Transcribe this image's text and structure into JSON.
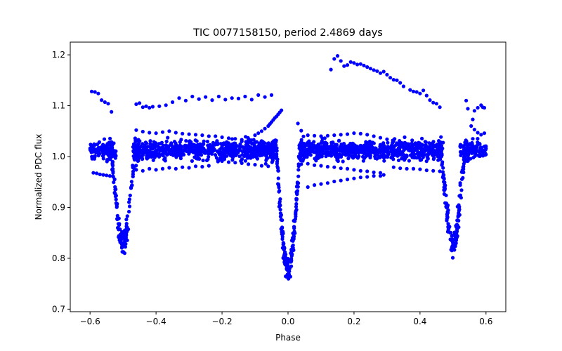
{
  "chart_data": {
    "type": "scatter",
    "title": "TIC 0077158150, period 2.4869 days",
    "xlabel": "Phase",
    "ylabel": "Normalized PDC flux",
    "xlim": [
      -0.66,
      0.66
    ],
    "ylim": [
      0.695,
      1.225
    ],
    "xticks": [
      -0.6,
      -0.4,
      -0.2,
      0.0,
      0.2,
      0.4,
      0.6
    ],
    "xtick_labels": [
      "−0.6",
      "−0.4",
      "−0.2",
      "0.0",
      "0.2",
      "0.4",
      "0.6"
    ],
    "yticks": [
      0.7,
      0.8,
      0.9,
      1.0,
      1.1,
      1.2
    ],
    "ytick_labels": [
      "0.7",
      "0.8",
      "0.9",
      "1.0",
      "1.1",
      "1.2"
    ],
    "grid": false,
    "marker_color": "#0000ff",
    "series": [
      {
        "points": [
          [
            -0.595,
            1.128
          ],
          [
            -0.585,
            1.127
          ],
          [
            -0.575,
            1.124
          ],
          [
            -0.565,
            1.111
          ],
          [
            -0.555,
            1.107
          ],
          [
            -0.545,
            1.104
          ],
          [
            -0.535,
            1.088
          ],
          [
            -0.59,
            0.968
          ],
          [
            -0.58,
            0.967
          ],
          [
            -0.57,
            0.965
          ],
          [
            -0.56,
            0.964
          ],
          [
            -0.55,
            0.963
          ],
          [
            -0.54,
            0.962
          ],
          [
            -0.46,
            1.103
          ],
          [
            -0.45,
            1.105
          ],
          [
            -0.44,
            1.097
          ],
          [
            -0.43,
            1.099
          ],
          [
            -0.42,
            1.096
          ],
          [
            -0.41,
            1.098
          ],
          [
            -0.39,
            1.099
          ],
          [
            -0.37,
            1.101
          ],
          [
            -0.35,
            1.107
          ],
          [
            -0.33,
            1.115
          ],
          [
            -0.31,
            1.11
          ],
          [
            -0.29,
            1.118
          ],
          [
            -0.27,
            1.113
          ],
          [
            -0.25,
            1.117
          ],
          [
            -0.23,
            1.111
          ],
          [
            -0.21,
            1.118
          ],
          [
            -0.19,
            1.112
          ],
          [
            -0.17,
            1.115
          ],
          [
            -0.15,
            1.114
          ],
          [
            -0.13,
            1.118
          ],
          [
            -0.11,
            1.112
          ],
          [
            -0.09,
            1.121
          ],
          [
            -0.07,
            1.117
          ],
          [
            -0.05,
            1.121
          ],
          [
            -0.46,
            0.974
          ],
          [
            -0.44,
            0.972
          ],
          [
            -0.42,
            0.976
          ],
          [
            -0.4,
            0.974
          ],
          [
            -0.38,
            0.976
          ],
          [
            -0.36,
            0.978
          ],
          [
            -0.34,
            0.976
          ],
          [
            -0.32,
            0.979
          ],
          [
            -0.3,
            0.978
          ],
          [
            -0.28,
            0.981
          ],
          [
            -0.26,
            0.98
          ],
          [
            -0.24,
            0.982
          ],
          [
            -0.46,
            1.052
          ],
          [
            -0.44,
            1.049
          ],
          [
            -0.42,
            1.047
          ],
          [
            -0.4,
            1.046
          ],
          [
            -0.38,
            1.048
          ],
          [
            -0.36,
            1.05
          ],
          [
            -0.34,
            1.047
          ],
          [
            -0.32,
            1.045
          ],
          [
            -0.3,
            1.044
          ],
          [
            -0.28,
            1.043
          ],
          [
            -0.26,
            1.042
          ],
          [
            -0.24,
            1.04
          ],
          [
            -0.22,
            1.04
          ],
          [
            -0.2,
            1.038
          ],
          [
            -0.18,
            1.036
          ],
          [
            -0.16,
            1.035
          ],
          [
            -0.14,
            1.033
          ],
          [
            -0.12,
            1.03
          ],
          [
            -0.1,
            1.028
          ],
          [
            -0.2,
            0.991
          ],
          [
            -0.18,
            0.989
          ],
          [
            -0.16,
            0.988
          ],
          [
            -0.14,
            0.987
          ],
          [
            -0.12,
            0.985
          ],
          [
            -0.1,
            0.984
          ],
          [
            -0.08,
            0.982
          ],
          [
            -0.06,
            0.981
          ],
          [
            -0.2,
            1.02
          ],
          [
            -0.18,
            1.023
          ],
          [
            -0.16,
            1.026
          ],
          [
            -0.14,
            1.03
          ],
          [
            -0.12,
            1.035
          ],
          [
            -0.1,
            1.042
          ],
          [
            -0.09,
            1.046
          ],
          [
            -0.08,
            1.05
          ],
          [
            -0.07,
            1.055
          ],
          [
            -0.06,
            1.06
          ],
          [
            -0.055,
            1.064
          ],
          [
            -0.05,
            1.068
          ],
          [
            -0.045,
            1.072
          ],
          [
            -0.04,
            1.076
          ],
          [
            -0.035,
            1.079
          ],
          [
            -0.03,
            1.083
          ],
          [
            -0.025,
            1.087
          ],
          [
            -0.02,
            1.091
          ],
          [
            0.13,
            1.171
          ],
          [
            0.14,
            1.192
          ],
          [
            0.15,
            1.198
          ],
          [
            0.16,
            1.188
          ],
          [
            0.17,
            1.178
          ],
          [
            0.18,
            1.18
          ],
          [
            0.19,
            1.186
          ],
          [
            0.2,
            1.184
          ],
          [
            0.21,
            1.181
          ],
          [
            0.22,
            1.182
          ],
          [
            0.23,
            1.179
          ],
          [
            0.24,
            1.176
          ],
          [
            0.25,
            1.173
          ],
          [
            0.26,
            1.17
          ],
          [
            0.27,
            1.168
          ],
          [
            0.28,
            1.164
          ],
          [
            0.29,
            1.167
          ],
          [
            0.3,
            1.161
          ],
          [
            0.31,
            1.155
          ],
          [
            0.32,
            1.151
          ],
          [
            0.33,
            1.15
          ],
          [
            0.34,
            1.145
          ],
          [
            0.35,
            1.138
          ],
          [
            0.37,
            1.131
          ],
          [
            0.38,
            1.128
          ],
          [
            0.39,
            1.127
          ],
          [
            0.4,
            1.124
          ],
          [
            0.41,
            1.13
          ],
          [
            0.42,
            1.12
          ],
          [
            0.43,
            1.111
          ],
          [
            0.44,
            1.106
          ],
          [
            0.45,
            1.104
          ],
          [
            0.46,
            1.097
          ],
          [
            0.06,
            0.94
          ],
          [
            0.08,
            0.944
          ],
          [
            0.1,
            0.946
          ],
          [
            0.12,
            0.948
          ],
          [
            0.14,
            0.951
          ],
          [
            0.16,
            0.953
          ],
          [
            0.18,
            0.955
          ],
          [
            0.2,
            0.957
          ],
          [
            0.22,
            0.959
          ],
          [
            0.24,
            0.96
          ],
          [
            0.26,
            0.962
          ],
          [
            0.28,
            0.962
          ],
          [
            0.29,
            0.964
          ],
          [
            0.04,
            0.985
          ],
          [
            0.06,
            0.986
          ],
          [
            0.08,
            0.983
          ],
          [
            0.1,
            0.982
          ],
          [
            0.12,
            0.98
          ],
          [
            0.14,
            0.979
          ],
          [
            0.16,
            0.977
          ],
          [
            0.18,
            0.976
          ],
          [
            0.2,
            0.974
          ],
          [
            0.22,
            0.972
          ],
          [
            0.24,
            0.971
          ],
          [
            0.26,
            0.969
          ],
          [
            0.28,
            0.968
          ],
          [
            0.04,
            1.051
          ],
          [
            0.06,
            1.042
          ],
          [
            0.08,
            1.041
          ],
          [
            0.1,
            1.04
          ],
          [
            0.12,
            1.041
          ],
          [
            0.14,
            1.042
          ],
          [
            0.16,
            1.043
          ],
          [
            0.18,
            1.044
          ],
          [
            0.2,
            1.046
          ],
          [
            0.22,
            1.045
          ],
          [
            0.24,
            1.043
          ],
          [
            0.26,
            1.04
          ],
          [
            0.28,
            1.037
          ],
          [
            0.3,
            1.034
          ],
          [
            0.32,
            1.03
          ],
          [
            0.34,
            1.028
          ],
          [
            0.36,
            1.025
          ],
          [
            0.38,
            1.023
          ],
          [
            0.4,
            1.02
          ],
          [
            0.32,
            0.979
          ],
          [
            0.34,
            0.977
          ],
          [
            0.36,
            0.976
          ],
          [
            0.38,
            0.976
          ],
          [
            0.4,
            0.975
          ],
          [
            0.42,
            0.973
          ],
          [
            0.44,
            0.972
          ],
          [
            0.46,
            0.971
          ],
          [
            0.03,
            1.065
          ],
          [
            0.085,
            0.992
          ],
          [
            0.54,
            1.11
          ],
          [
            0.545,
            1.094
          ],
          [
            0.56,
            1.073
          ],
          [
            0.565,
            1.09
          ],
          [
            0.575,
            1.096
          ],
          [
            0.585,
            1.101
          ],
          [
            0.59,
            1.097
          ],
          [
            0.595,
            1.096
          ],
          [
            0.555,
            1.06
          ],
          [
            0.565,
            1.053
          ],
          [
            0.575,
            1.047
          ],
          [
            0.585,
            1.043
          ],
          [
            0.595,
            1.046
          ]
        ],
        "bands": [
          {
            "x_range": [
              -0.6,
              -0.52
            ],
            "y_center": 1.012,
            "y_spread": 0.018,
            "count": 110
          },
          {
            "x_range": [
              -0.47,
              -0.04
            ],
            "y_center": 1.013,
            "y_spread": 0.02,
            "count": 650
          },
          {
            "x_range": [
              0.04,
              0.47
            ],
            "y_center": 1.013,
            "y_spread": 0.02,
            "count": 650
          },
          {
            "x_range": [
              0.52,
              0.6
            ],
            "y_center": 1.012,
            "y_spread": 0.018,
            "count": 110
          }
        ],
        "dips": [
          {
            "center": -0.5,
            "depth": 0.185,
            "half_width": 0.035,
            "count": 180
          },
          {
            "center": 0.0,
            "depth": 0.24,
            "half_width": 0.035,
            "count": 240
          },
          {
            "center": 0.5,
            "depth": 0.185,
            "half_width": 0.035,
            "count": 180
          }
        ]
      }
    ]
  }
}
